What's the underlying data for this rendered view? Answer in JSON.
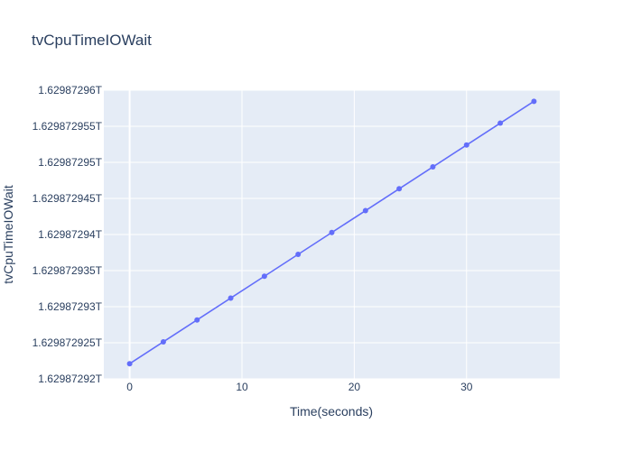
{
  "chart_data": {
    "type": "line",
    "title": "tvCpuTimeIOWait",
    "xlabel": "Time(seconds)",
    "ylabel": "tvCpuTimeIOWait",
    "xlim": [
      -2.3,
      38.3
    ],
    "ylim": [
      1629872920000,
      1629872960000
    ],
    "x_ticks": [
      0,
      10,
      20,
      30
    ],
    "x_tick_labels": [
      "0",
      "10",
      "20",
      "30"
    ],
    "y_ticks": [
      1629872920000,
      1629872925000,
      1629872930000,
      1629872935000,
      1629872940000,
      1629872945000,
      1629872950000,
      1629872955000,
      1629872960000
    ],
    "y_tick_labels": [
      "1.62987292T",
      "1.629872925T",
      "1.62987293T",
      "1.629872935T",
      "1.62987294T",
      "1.629872945T",
      "1.62987295T",
      "1.629872955T",
      "1.62987296T"
    ],
    "grid": true,
    "colors": {
      "line": "#636efa",
      "plot_bg": "#e5ecf6",
      "grid": "#ffffff",
      "text": "#2a3f5f"
    },
    "series": [
      {
        "x": [
          0,
          3,
          6,
          9,
          12,
          15,
          18,
          21,
          24,
          27,
          30,
          33,
          36
        ],
        "y": [
          1629872922100,
          1629872925130,
          1629872928160,
          1629872931190,
          1629872934220,
          1629872937250,
          1629872940280,
          1629872943310,
          1629872946340,
          1629872949370,
          1629872952400,
          1629872955430,
          1629872958460
        ]
      }
    ]
  }
}
